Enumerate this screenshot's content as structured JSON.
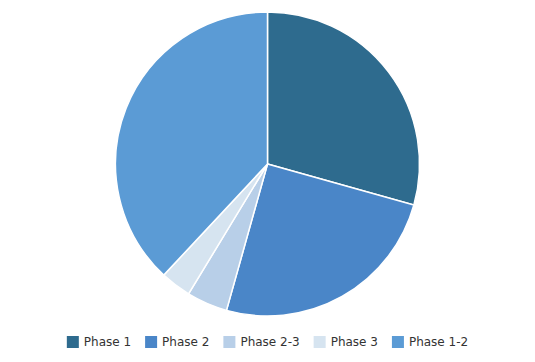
{
  "chart_data": {
    "type": "pie",
    "categories": [
      "Phase 1",
      "Phase 2",
      "Phase 2-3",
      "Phase 3",
      "Phase 1-2"
    ],
    "values": [
      27.0,
      23.0,
      4.0,
      3.0,
      35.0
    ],
    "colors": [
      "#2e6b8e",
      "#4a86c8",
      "#b8cfe8",
      "#d6e4f0",
      "#5b9bd5"
    ],
    "legend": "bottom"
  }
}
